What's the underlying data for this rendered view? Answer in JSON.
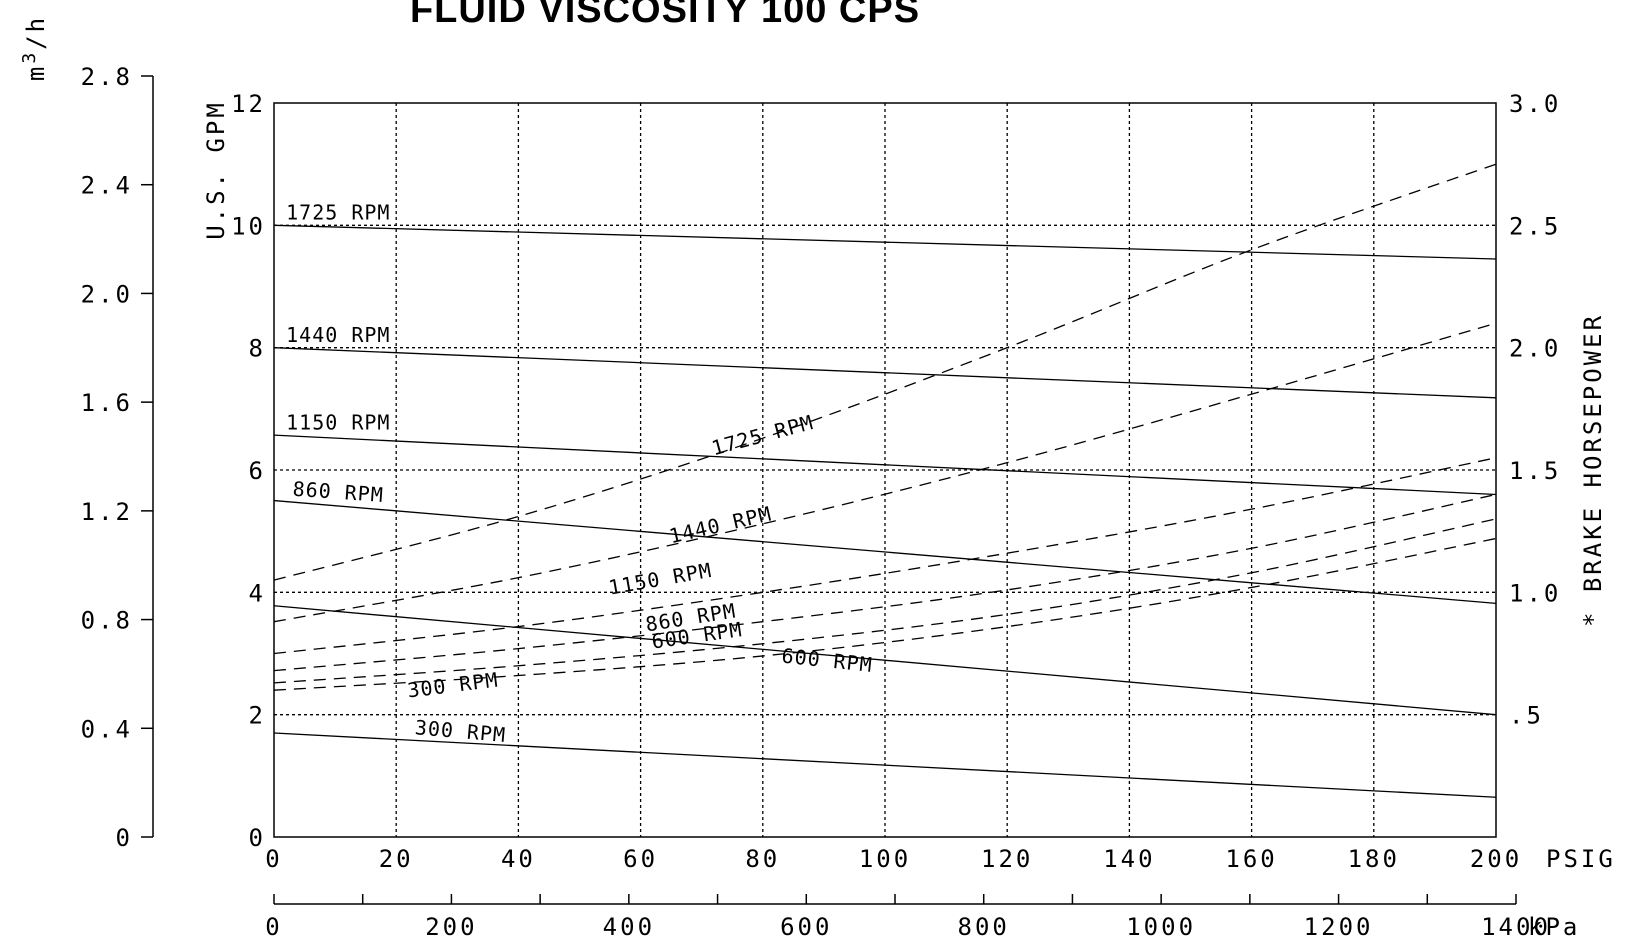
{
  "chart_data": {
    "type": "line",
    "title": "FLUID VISCOSITY 100 CPS",
    "x_axis": {
      "label": "PSIG",
      "range": [
        0,
        200
      ],
      "ticks": [
        "0",
        "20",
        "40",
        "60",
        "80",
        "100",
        "120",
        "140",
        "160",
        "180",
        "200"
      ]
    },
    "x_axis_secondary": {
      "label": "kPa",
      "range": [
        0,
        1400
      ],
      "ticks": [
        "0",
        "200",
        "400",
        "600",
        "800",
        "1000",
        "1200",
        "1400"
      ]
    },
    "y_axis_left": {
      "label": "U.S. GPM",
      "range": [
        0,
        12
      ],
      "ticks": [
        "0",
        "2",
        "4",
        "6",
        "8",
        "10",
        "12"
      ]
    },
    "y_axis_metric": {
      "label_base": "m",
      "label_sup": "3",
      "label_rest": "/h",
      "range": [
        0,
        2.8
      ],
      "ticks": [
        "0",
        "0.4",
        "0.8",
        "1.2",
        "1.6",
        "2.0",
        "2.4",
        "2.8"
      ]
    },
    "y_axis_right": {
      "label": "* BRAKE HORSEPOWER",
      "range": [
        0,
        3.0
      ],
      "ticks": [
        ".5",
        "1.0",
        "1.5",
        "2.0",
        "2.5",
        "3.0"
      ],
      "tick_values": [
        0.5,
        1.0,
        1.5,
        2.0,
        2.5,
        3.0
      ]
    },
    "grid": true,
    "flow_series": [
      {
        "name": "1725 RPM",
        "axis": "GPM",
        "style": "solid",
        "x": [
          0,
          200
        ],
        "y": [
          10.0,
          9.45
        ]
      },
      {
        "name": "1440 RPM",
        "axis": "GPM",
        "style": "solid",
        "x": [
          0,
          200
        ],
        "y": [
          8.0,
          7.18
        ]
      },
      {
        "name": "1150 RPM",
        "axis": "GPM",
        "style": "solid",
        "x": [
          0,
          200
        ],
        "y": [
          6.57,
          5.6
        ]
      },
      {
        "name": "860 RPM",
        "axis": "GPM",
        "style": "solid",
        "x": [
          0,
          200
        ],
        "y": [
          5.5,
          3.82
        ]
      },
      {
        "name": "600 RPM",
        "axis": "GPM",
        "style": "solid",
        "x": [
          0,
          200
        ],
        "y": [
          3.78,
          2.0
        ]
      },
      {
        "name": "300 RPM",
        "axis": "GPM",
        "style": "solid",
        "x": [
          0,
          200
        ],
        "y": [
          1.7,
          0.65
        ]
      }
    ],
    "power_series": [
      {
        "name": "1725 RPM",
        "axis": "BHP",
        "style": "dashed",
        "x": [
          0,
          40,
          80,
          120,
          160,
          200
        ],
        "y": [
          1.05,
          1.31,
          1.63,
          2.0,
          2.4,
          2.75
        ]
      },
      {
        "name": "1440 RPM",
        "axis": "BHP",
        "style": "dashed",
        "x": [
          0,
          40,
          80,
          120,
          160,
          200
        ],
        "y": [
          0.88,
          1.06,
          1.28,
          1.53,
          1.81,
          2.1
        ]
      },
      {
        "name": "1150 RPM",
        "axis": "BHP",
        "style": "dashed",
        "x": [
          0,
          40,
          80,
          120,
          160,
          200
        ],
        "y": [
          0.75,
          0.86,
          1.0,
          1.16,
          1.34,
          1.55
        ]
      },
      {
        "name": "860 RPM",
        "axis": "BHP",
        "style": "dashed",
        "x": [
          0,
          40,
          80,
          120,
          160,
          200
        ],
        "y": [
          0.68,
          0.77,
          0.88,
          1.01,
          1.18,
          1.4
        ]
      },
      {
        "name": "600 RPM",
        "axis": "BHP",
        "style": "dashed",
        "x": [
          0,
          40,
          80,
          120,
          160,
          200
        ],
        "y": [
          0.63,
          0.7,
          0.79,
          0.91,
          1.08,
          1.3
        ]
      },
      {
        "name": "300 RPM",
        "axis": "BHP",
        "style": "dashed",
        "x": [
          0,
          40,
          80,
          120,
          160,
          200
        ],
        "y": [
          0.6,
          0.66,
          0.74,
          0.86,
          1.02,
          1.22
        ]
      }
    ]
  }
}
